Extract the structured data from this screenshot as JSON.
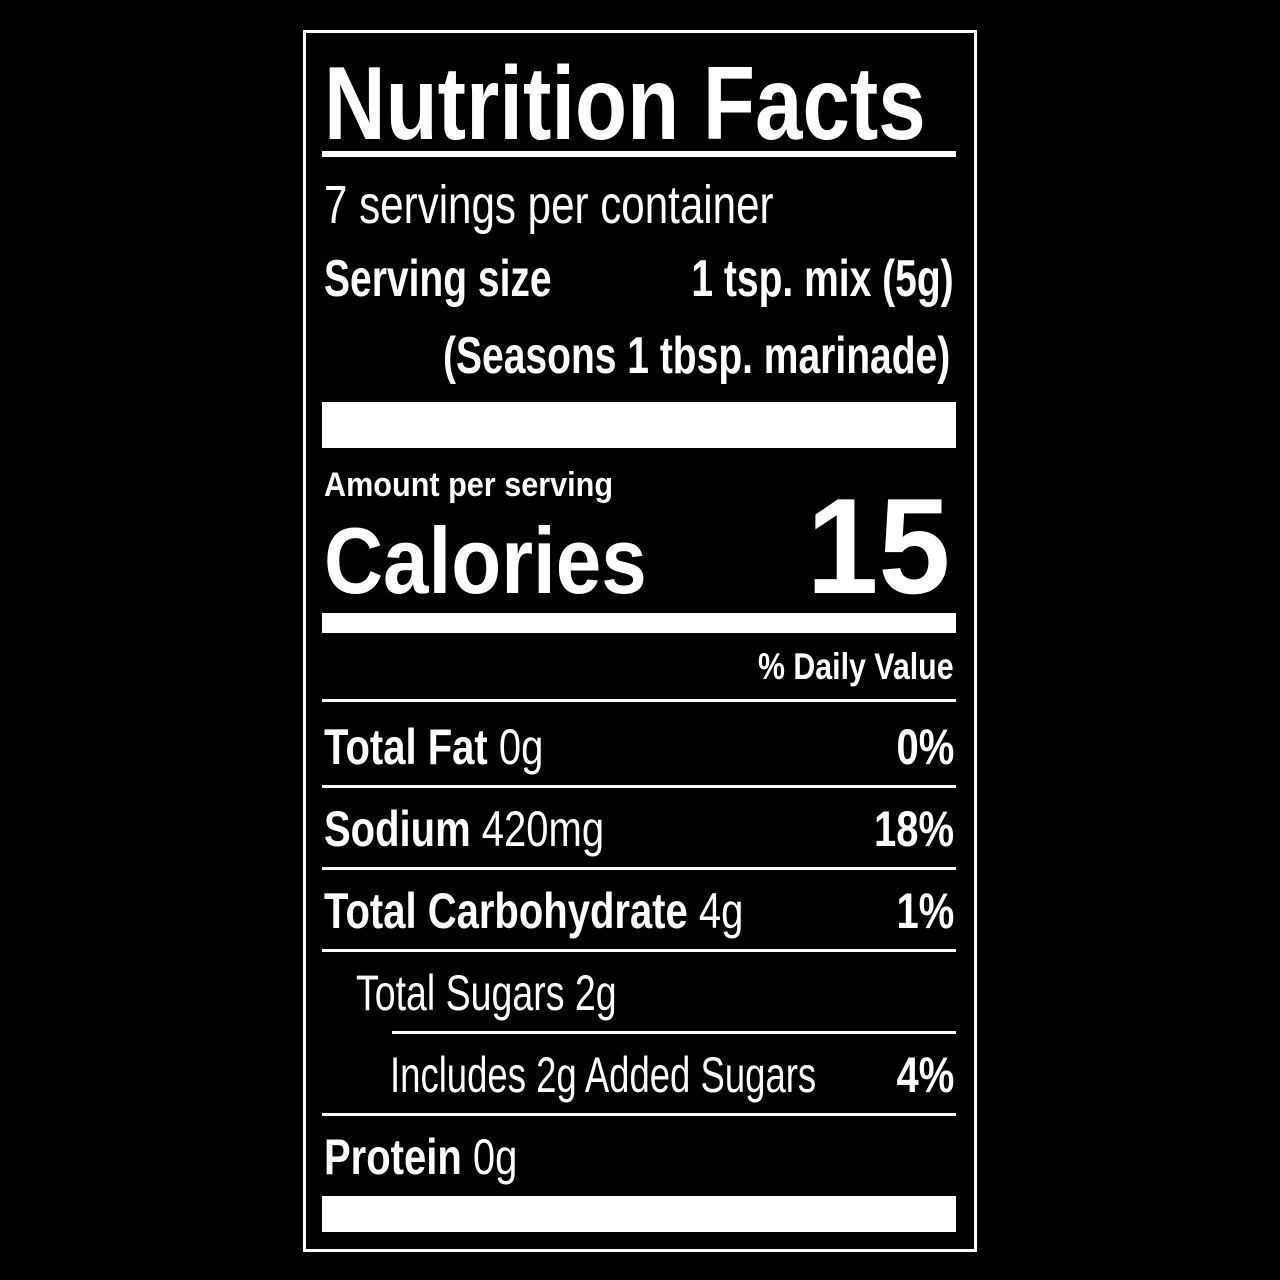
{
  "title": "Nutrition Facts",
  "servings_per_container": "7 servings per container",
  "serving_size": {
    "label": "Serving size",
    "value": "1 tsp. mix (5g)",
    "note": "(Seasons 1 tbsp. marinade)"
  },
  "amount_per_serving": "Amount per serving",
  "calories": {
    "label": "Calories",
    "value": "15"
  },
  "daily_value_header": "% Daily Value",
  "nutrients": [
    {
      "name": "Total Fat",
      "amount": "0g",
      "dv": "0%"
    },
    {
      "name": "Sodium",
      "amount": "420mg",
      "dv": "18%"
    },
    {
      "name": "Total Carbohydrate",
      "amount": "4g",
      "dv": "1%"
    },
    {
      "name": "Total Sugars 2g",
      "amount": "",
      "dv": ""
    },
    {
      "name": "Includes 2g Added Sugars",
      "amount": "",
      "dv": "4%"
    },
    {
      "name": "Protein",
      "amount": "0g",
      "dv": ""
    }
  ],
  "colors": {
    "background": "#000000",
    "foreground": "#ffffff"
  }
}
